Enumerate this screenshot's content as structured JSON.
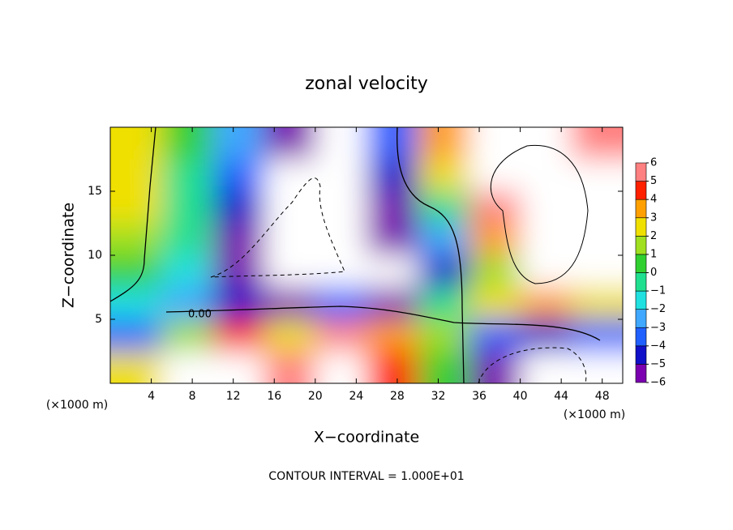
{
  "chart_data": {
    "type": "contour",
    "title": "zonal velocity",
    "x_label": "X−coordinate",
    "y_label": "Z−coordinate",
    "x_unit": "(×1000 m)",
    "footer": "CONTOUR INTERVAL = 1.000E+01",
    "contour_label": "0.00",
    "xlim": [
      0,
      50
    ],
    "ylim": [
      0,
      20
    ],
    "xticks": [
      4,
      8,
      12,
      16,
      20,
      24,
      28,
      32,
      36,
      40,
      44,
      48
    ],
    "yticks": [
      5,
      10,
      15
    ],
    "x": [
      2.5,
      7.5,
      12.5,
      17.5,
      22.5,
      27.5,
      32.5,
      37.5,
      42.5,
      47.5
    ],
    "y": [
      1.25,
      3.75,
      6.25,
      8.75,
      11.25,
      13.75,
      16.25,
      18.75
    ],
    "z": [
      [
        3,
        7,
        7,
        6,
        8,
        5,
        1,
        -5,
        -8,
        -7
      ],
      [
        -3,
        2,
        5,
        3,
        6,
        4,
        2,
        -3,
        -4,
        -3
      ],
      [
        -1,
        -2,
        -4,
        -5,
        -3,
        -5,
        0,
        3,
        4,
        3
      ],
      [
        0.5,
        -1.5,
        -5,
        -8,
        -8,
        -8,
        -4,
        2,
        8,
        7
      ],
      [
        1.5,
        -0.5,
        -5,
        -8,
        -8,
        -6,
        -2,
        4,
        8,
        8
      ],
      [
        2.5,
        0,
        -4,
        -8,
        -8,
        -5,
        0,
        6,
        8,
        8
      ],
      [
        3,
        0,
        -3,
        -7,
        -8,
        -4,
        3,
        8,
        8,
        7
      ],
      [
        3,
        0.5,
        -2,
        -5,
        -8,
        -3,
        4,
        8,
        8,
        5.5
      ]
    ],
    "cticks": [
      {
        "value": -6,
        "label": "−6"
      },
      {
        "value": -5,
        "label": "−5"
      },
      {
        "value": -4,
        "label": "−4"
      },
      {
        "value": -3,
        "label": "−3"
      },
      {
        "value": -2,
        "label": "−2"
      },
      {
        "value": -1,
        "label": "−1"
      },
      0,
      1,
      2,
      3,
      4,
      5,
      6
    ],
    "colors": [
      "#7b00b0",
      "#1010c8",
      "#2060ff",
      "#40a8ff",
      "#20e0e0",
      "#20e090",
      "#30d030",
      "#a0e020",
      "#f0e000",
      "#ffa000",
      "#ff2000",
      "#ff8080"
    ]
  }
}
